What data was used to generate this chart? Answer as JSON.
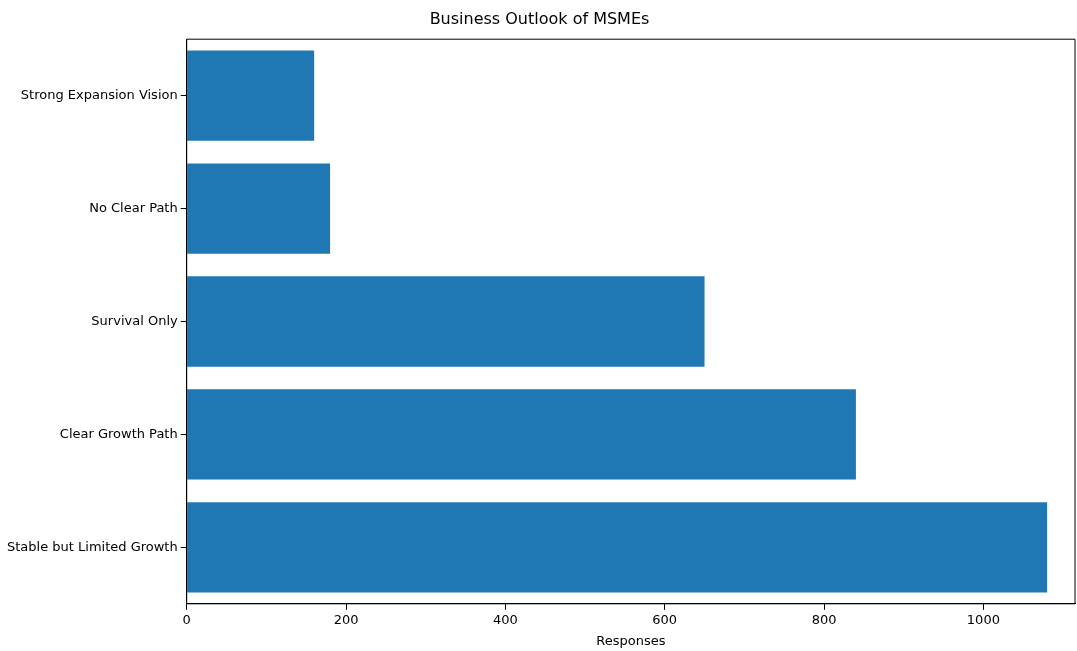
{
  "chart_data": {
    "type": "bar",
    "orientation": "horizontal",
    "title": "Business Outlook of MSMEs",
    "xlabel": "Responses",
    "categories": [
      "Strong Expansion Vision",
      "No Clear Path",
      "Survival Only",
      "Clear Growth Path",
      "Stable but Limited Growth"
    ],
    "values": [
      160,
      180,
      650,
      840,
      1080
    ],
    "color": "#1f77b4",
    "xlim": [
      0,
      1115
    ],
    "xticks": [
      0,
      200,
      400,
      600,
      800,
      1000
    ],
    "grid": false,
    "legend": false
  }
}
